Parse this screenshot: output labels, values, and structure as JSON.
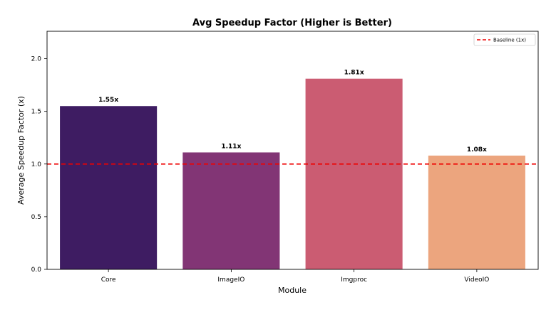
{
  "chart_data": {
    "type": "bar",
    "title": "Avg Speedup Factor (Higher is Better)",
    "xlabel": "Module",
    "ylabel": "Average Speedup Factor (x)",
    "categories": [
      "Core",
      "ImageIO",
      "Imgproc",
      "VideoIO"
    ],
    "values": [
      1.55,
      1.11,
      1.81,
      1.08
    ],
    "data_labels": [
      "1.55x",
      "1.11x",
      "1.81x",
      "1.08x"
    ],
    "colors": [
      "#3e1c62",
      "#823575",
      "#cb5c72",
      "#eca57e"
    ],
    "ylim": [
      0,
      2.26
    ],
    "yticks": [
      0.0,
      0.5,
      1.0,
      1.5,
      2.0
    ],
    "ytick_labels": [
      "0.0",
      "0.5",
      "1.0",
      "1.5",
      "2.0"
    ],
    "baseline": {
      "value": 1.0,
      "label": "Baseline (1x)",
      "color": "#ee0000",
      "style": "dashed"
    },
    "legend_position": "top-right",
    "grid": false
  }
}
